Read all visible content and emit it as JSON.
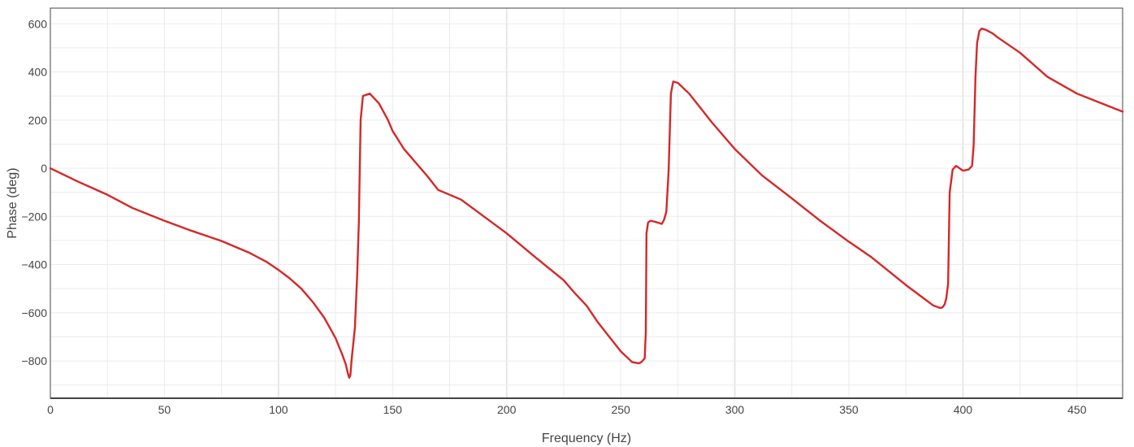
{
  "chart_data": {
    "type": "line",
    "title": "",
    "xlabel": "Frequency (Hz)",
    "ylabel": "Phase (deg)",
    "xlim": [
      0,
      470
    ],
    "ylim": [
      -955,
      665
    ],
    "x_ticks": [
      0,
      50,
      100,
      150,
      200,
      250,
      300,
      350,
      400,
      450
    ],
    "x_tick_labels": [
      "0",
      "50",
      "100",
      "150",
      "200",
      "250",
      "300",
      "350",
      "400",
      "450"
    ],
    "y_ticks": [
      600,
      400,
      200,
      0,
      -200,
      -400,
      -600,
      -800
    ],
    "y_tick_labels": [
      "600",
      "400",
      "200",
      "0",
      "−200",
      "−400",
      "−600",
      "−800"
    ],
    "grid": true,
    "legend": "none",
    "series": [
      {
        "color": "#d62728",
        "x": [
          0,
          12,
          25,
          36,
          50,
          62,
          75,
          87,
          95,
          100,
          105,
          110,
          115,
          120,
          125,
          128,
          129.5,
          130.5,
          131,
          131.5,
          132,
          133.5,
          134.5,
          135.2,
          136,
          137,
          140,
          144,
          148,
          150,
          155,
          160,
          165,
          170,
          180,
          190,
          200,
          212,
          225,
          230,
          235,
          240,
          250,
          255,
          258,
          259,
          260.5,
          261,
          261.3,
          262,
          263,
          265,
          268,
          269,
          270,
          271,
          272,
          273,
          275,
          280,
          290,
          300,
          312,
          325,
          337,
          350,
          360,
          375,
          387,
          390,
          391,
          392,
          392.7,
          393.5,
          394.2,
          395.5,
          397,
          400,
          402.5,
          404,
          404.7,
          405.5,
          406.2,
          407.2,
          408.2,
          410,
          413,
          415,
          425,
          437,
          450,
          462,
          470
        ],
        "y": [
          0,
          -55,
          -110,
          -165,
          -218,
          -260,
          -302,
          -350,
          -390,
          -422,
          -458,
          -500,
          -555,
          -620,
          -705,
          -775,
          -815,
          -855,
          -870,
          -860,
          -800,
          -660,
          -440,
          -230,
          200,
          300,
          310,
          270,
          200,
          155,
          80,
          25,
          -30,
          -90,
          -130,
          -200,
          -270,
          -365,
          -465,
          -520,
          -570,
          -640,
          -760,
          -805,
          -810,
          -805,
          -790,
          -680,
          -270,
          -225,
          -218,
          -222,
          -231,
          -214,
          -180,
          -10,
          310,
          360,
          355,
          310,
          190,
          80,
          -30,
          -125,
          -215,
          -305,
          -370,
          -485,
          -570,
          -580,
          -578,
          -565,
          -540,
          -480,
          -100,
          -5,
          10,
          -10,
          -5,
          10,
          95,
          380,
          520,
          570,
          580,
          575,
          560,
          545,
          480,
          380,
          310,
          265,
          235
        ]
      }
    ]
  }
}
